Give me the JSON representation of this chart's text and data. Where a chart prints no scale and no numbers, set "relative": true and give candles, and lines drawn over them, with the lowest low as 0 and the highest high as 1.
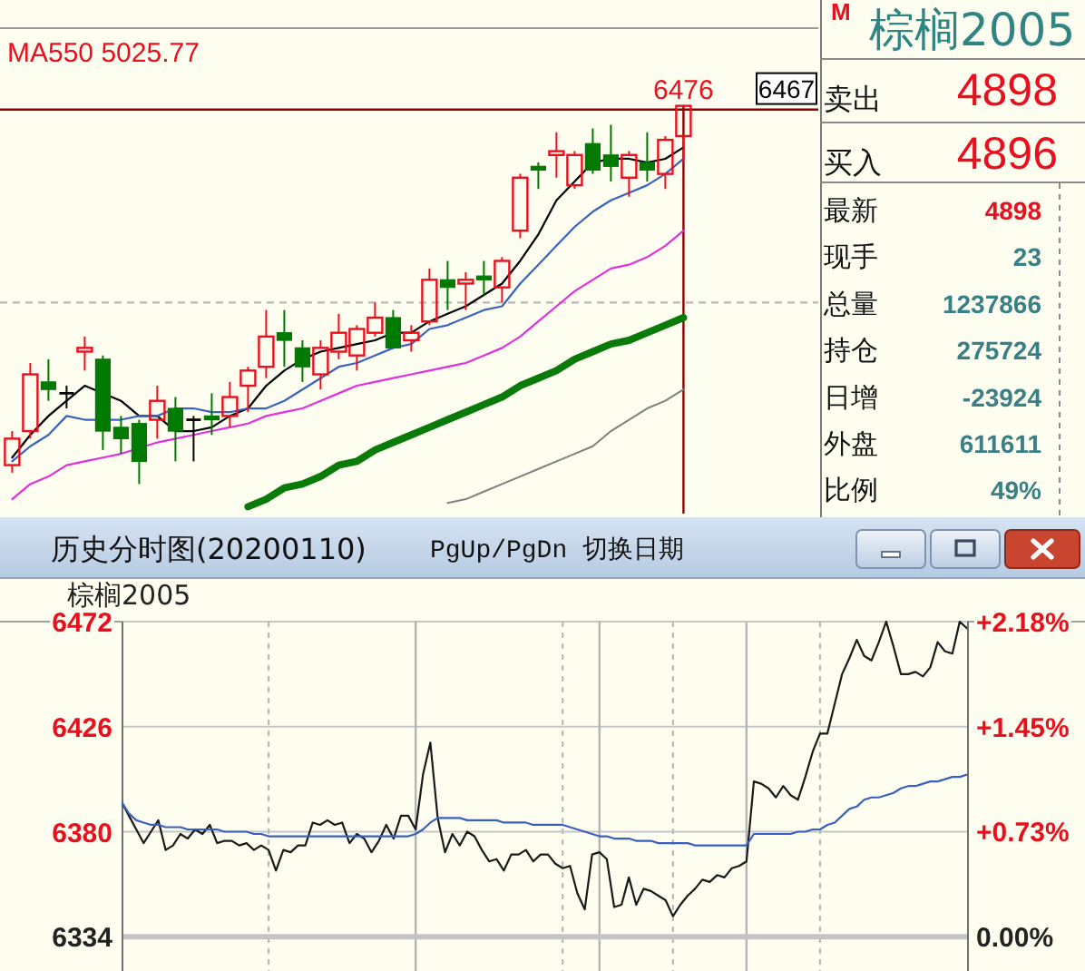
{
  "chart_data": [
    {
      "type": "candlestick",
      "relative": true,
      "annotations": [
        "MA550 5025.77",
        {
          "text": "6476",
          "y": 1
        },
        "6467"
      ],
      "categories": [
        null,
        null,
        null,
        null,
        null,
        null,
        null,
        null,
        null,
        null,
        null,
        null,
        null,
        null,
        null,
        null,
        null,
        null,
        null,
        null,
        null,
        null,
        null,
        null,
        null,
        null,
        null,
        null,
        null,
        null,
        null,
        null,
        null,
        null,
        null,
        null,
        null,
        null
      ],
      "ohlc": [
        [
          0.05,
          0.14,
          0.03,
          0.12
        ],
        [
          0.14,
          0.32,
          0.12,
          0.29
        ],
        [
          0.27,
          0.33,
          0.22,
          0.25
        ],
        [
          0.24,
          0.26,
          0.2,
          0.24
        ],
        [
          0.35,
          0.39,
          0.3,
          0.36
        ],
        [
          0.33,
          0.34,
          0.09,
          0.14
        ],
        [
          0.15,
          0.18,
          0.08,
          0.12
        ],
        [
          0.16,
          0.17,
          0,
          0.06
        ],
        [
          0.17,
          0.26,
          0.12,
          0.22
        ],
        [
          0.2,
          0.23,
          0.06,
          0.14
        ],
        [
          0.17,
          0.18,
          0.06,
          0.17
        ],
        [
          0.18,
          0.24,
          0.13,
          0.17
        ],
        [
          0.18,
          0.27,
          0.15,
          0.23
        ],
        [
          0.26,
          0.31,
          0.19,
          0.3
        ],
        [
          0.31,
          0.46,
          0.28,
          0.39
        ],
        [
          0.4,
          0.46,
          0.31,
          0.38
        ],
        [
          0.36,
          0.38,
          0.27,
          0.31
        ],
        [
          0.29,
          0.38,
          0.25,
          0.36
        ],
        [
          0.35,
          0.45,
          0.33,
          0.4
        ],
        [
          0.34,
          0.42,
          0.3,
          0.41
        ],
        [
          0.4,
          0.48,
          0.39,
          0.44
        ],
        [
          0.44,
          0.46,
          0.36,
          0.36
        ],
        [
          0.38,
          0.42,
          0.35,
          0.4
        ],
        [
          0.43,
          0.57,
          0.42,
          0.54
        ],
        [
          0.54,
          0.59,
          0.46,
          0.52
        ],
        [
          0.53,
          0.56,
          0.46,
          0.54
        ],
        [
          0.55,
          0.59,
          0.5,
          0.54
        ],
        [
          0.52,
          0.6,
          0.48,
          0.59
        ],
        [
          0.67,
          0.82,
          0.65,
          0.81
        ],
        [
          0.84,
          0.85,
          0.78,
          0.83
        ],
        [
          0.87,
          0.93,
          0.81,
          0.88
        ],
        [
          0.79,
          0.88,
          0.78,
          0.87
        ],
        [
          0.9,
          0.94,
          0.82,
          0.83
        ],
        [
          0.87,
          0.95,
          0.8,
          0.84
        ],
        [
          0.81,
          0.88,
          0.76,
          0.87
        ],
        [
          0.85,
          0.93,
          0.8,
          0.83
        ],
        [
          0.82,
          0.92,
          0.78,
          0.91
        ],
        [
          0.92,
          1,
          0.85,
          1
        ]
      ],
      "colors": [
        "#e8101e",
        "#e8101e",
        "#007a00",
        "#000000",
        "#e8101e",
        "#007a00",
        "#007a00",
        "#007a00",
        "#e8101e",
        "#007a00",
        "#000000",
        "#007a00",
        "#e8101e",
        "#e8101e",
        "#e8101e",
        "#007a00",
        "#007a00",
        "#e8101e",
        "#e8101e",
        "#e8101e",
        "#e8101e",
        "#007a00",
        "#e8101e",
        "#e8101e",
        "#007a00",
        "#e8101e",
        "#007a00",
        "#e8101e",
        "#e8101e",
        "#007a00",
        "#e8101e",
        "#e8101e",
        "#007a00",
        "#007a00",
        "#e8101e",
        "#007a00",
        "#e8101e",
        "#e8101e"
      ],
      "series": [
        {
          "type": "line",
          "color": "#000000",
          "values": [
            0.07,
            0.13,
            0.18,
            0.22,
            0.26,
            null,
            0.22,
            0.18,
            0.18,
            0.14,
            0.14,
            0.15,
            0.18,
            0.2,
            0.26,
            0.3,
            0.33,
            0.35,
            0.36,
            0.37,
            0.38,
            0.4,
            0.4,
            0.43,
            0.45,
            0.47,
            0.5,
            0.53,
            0.59,
            0.66,
            0.75,
            0.8,
            0.85,
            0.86,
            0.86,
            0.85,
            0.86,
            0.89
          ]
        },
        {
          "type": "line",
          "color": "#3a62c0",
          "values": [
            0.06,
            0.1,
            0.13,
            0.18,
            0.17,
            null,
            0.17,
            0.18,
            0.18,
            0.2,
            0.2,
            0.19,
            0.19,
            0.2,
            0.2,
            0.22,
            0.25,
            0.28,
            0.31,
            0.32,
            0.34,
            0.36,
            0.37,
            0.41,
            0.42,
            0.44,
            0.46,
            0.47,
            0.53,
            0.58,
            0.63,
            0.68,
            0.72,
            0.75,
            0.77,
            0.79,
            0.82,
            0.86
          ]
        },
        {
          "type": "line",
          "color": "#e030e0",
          "values": [
            -0.04,
            0,
            0.02,
            0.05,
            0.06,
            0.07,
            0.08,
            null,
            0.11,
            0.12,
            0.13,
            0.14,
            0.15,
            0.16,
            0.18,
            0.19,
            0.2,
            0.22,
            0.24,
            0.26,
            0.27,
            0.28,
            0.29,
            0.3,
            0.31,
            0.32,
            0.34,
            0.36,
            0.39,
            0.43,
            0.47,
            0.51,
            0.54,
            0.57,
            0.58,
            0.6,
            0.63,
            0.67
          ]
        },
        {
          "type": "line",
          "color": "#0a7a0a",
          "values": [
            null,
            null,
            null,
            null,
            null,
            null,
            null,
            null,
            null,
            null,
            null,
            null,
            null,
            -0.06,
            -0.04,
            -0.01,
            0,
            0.02,
            0.05,
            0.06,
            0.09,
            0.11,
            0.13,
            0.15,
            0.17,
            0.19,
            0.21,
            0.23,
            0.26,
            0.28,
            0.3,
            0.33,
            0.35,
            0.37,
            0.38,
            0.4,
            0.42,
            0.44
          ]
        },
        {
          "type": "line",
          "color": "#808080",
          "values": [
            null,
            null,
            null,
            null,
            null,
            null,
            null,
            null,
            null,
            null,
            null,
            null,
            null,
            null,
            null,
            null,
            null,
            null,
            null,
            null,
            null,
            null,
            null,
            null,
            -0.05,
            -0.04,
            -0.02,
            0,
            0.02,
            0.04,
            0.06,
            0.08,
            0.1,
            0.14,
            0.17,
            0.2,
            0.22,
            0.25
          ]
        }
      ],
      "ref_lines": [
        {
          "axis": "y",
          "value": 0.48,
          "color": "#b8b8b8",
          "line_style": "dashed"
        },
        {
          "axis": "y",
          "value": 0.99,
          "color": "#8b0000"
        }
      ]
    },
    {
      "type": "other",
      "title": "棕榈2005",
      "subtitle": "M",
      "annotations": [
        "卖出",
        "4898",
        "买入",
        "4896",
        "最新",
        "4898",
        "现手",
        "23",
        "总量",
        "1237866",
        "持仓",
        "275724",
        "日增",
        "-23924",
        "外盘",
        "611611",
        "比例",
        "49%"
      ]
    },
    {
      "type": "line",
      "title": "历史分时图(20200110)",
      "subtitle": "棕榈2005",
      "annotations": [
        "PgUp/PgDn 切换日期"
      ],
      "categories": [
        null,
        null,
        null,
        null,
        null,
        null,
        null,
        null,
        null,
        null,
        null,
        null,
        null,
        null,
        null,
        null,
        null,
        null,
        null,
        null,
        null,
        null,
        null,
        null,
        null,
        null,
        null,
        null,
        null,
        null,
        null,
        null,
        null,
        null,
        null,
        null,
        null,
        null,
        null,
        null,
        null,
        null,
        null,
        null,
        null,
        null,
        null,
        null,
        null,
        null,
        null,
        null,
        null,
        null,
        null,
        null,
        null,
        null,
        null,
        null,
        null,
        null,
        null,
        null,
        null,
        null,
        null,
        null,
        null,
        null,
        null,
        null,
        null,
        null,
        null,
        null,
        null,
        null,
        null,
        null,
        null,
        null,
        null,
        null,
        null,
        null,
        null,
        null,
        null,
        null,
        null,
        null,
        null,
        null,
        null,
        null,
        null,
        null,
        null,
        null,
        null,
        null,
        null,
        null,
        null,
        null,
        null,
        null,
        null,
        null,
        null,
        null,
        null,
        null,
        null,
        null
      ],
      "ylim": [
        6319,
        6472
      ],
      "yticks": [
        6334,
        6380,
        6426,
        6472
      ],
      "y2lim": [
        -0.24,
        2.18
      ],
      "y2ticks": [
        {
          "value": 0,
          "label": "0.00%"
        },
        {
          "value": 0.73,
          "label": "+0.73%"
        },
        {
          "value": 1.45,
          "label": "+1.45%"
        },
        {
          "value": 2.18,
          "label": "+2.18%"
        }
      ],
      "tick_labels": "y",
      "grid": true,
      "ref_lines": [
        {
          "axis": "y",
          "value": 6334,
          "color": "#c4c4c4"
        }
      ],
      "series": [
        {
          "color": "#1a1a1a",
          "values": [
            6393,
            6387,
            6381,
            6375,
            6380,
            6385,
            6372,
            6374,
            6379,
            6377,
            6381,
            6379,
            6383,
            6375,
            6376,
            6376,
            6374,
            6375,
            6372,
            6374,
            6372,
            6363,
            6372,
            6371,
            6374,
            6374,
            6384,
            6383,
            6385,
            6383,
            6384,
            6375,
            6379,
            6377,
            6371,
            6376,
            6383,
            6377,
            6387,
            6387,
            6381,
            6405,
            6419,
            6386,
            6371,
            6379,
            6374,
            6380,
            6378,
            6372,
            6367,
            6368,
            6363,
            6370,
            6370,
            6372,
            6367,
            6370,
            6370,
            6366,
            6364,
            6365,
            6353,
            6346,
            6370,
            6371,
            6368,
            6347,
            6348,
            6360,
            6348,
            6355,
            6354,
            6352,
            6350,
            6343,
            6348,
            6352,
            6355,
            6359,
            6358,
            6361,
            6360,
            6364,
            6365,
            6367,
            6402,
            6401,
            6399,
            6395,
            6400,
            6396,
            6394,
            6404,
            6415,
            6423,
            6423,
            6436,
            6449,
            6456,
            6464,
            6457,
            6455,
            6463,
            6472,
            6461,
            6449,
            6449,
            6450,
            6448,
            6452,
            6463,
            6459,
            6458,
            6472,
            6469
          ]
        },
        {
          "color": "#3a5fc0",
          "values": [
            6393,
            6388,
            6385,
            6384,
            6383,
            6383,
            6382,
            6382,
            6382,
            6381,
            6381,
            6381,
            6381,
            6381,
            6380,
            6380,
            6380,
            6380,
            6379,
            6379,
            6378,
            6378,
            6378,
            6378,
            6378,
            6378,
            6378,
            6378,
            6378,
            6378,
            6378,
            6378,
            6378,
            6378,
            6378,
            6378,
            6378,
            6378,
            6378,
            6378,
            6379,
            6381,
            6384,
            6386,
            6386,
            6386,
            6386,
            6385,
            6385,
            6385,
            6385,
            6385,
            6384,
            6384,
            6384,
            6384,
            6383,
            6383,
            6383,
            6383,
            6383,
            6382,
            6381,
            6380,
            6379,
            6378,
            6378,
            6377,
            6377,
            6377,
            6376,
            6376,
            6376,
            6375,
            6375,
            6375,
            6375,
            6375,
            6374,
            6374,
            6374,
            6374,
            6374,
            6374,
            6374,
            6374,
            6379,
            6379,
            6379,
            6379,
            6379,
            6379,
            6380,
            6380,
            6381,
            6381,
            6383,
            6384,
            6387,
            6390,
            6391,
            6394,
            6395,
            6395,
            6396,
            6397,
            6399,
            6400,
            6400,
            6401,
            6402,
            6402,
            6403,
            6404,
            6404,
            6405
          ]
        }
      ]
    }
  ]
}
